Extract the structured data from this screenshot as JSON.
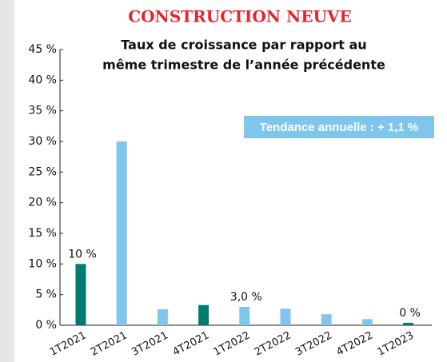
{
  "chart_data": {
    "type": "bar",
    "title": "CONSTRUCTION NEUVE",
    "subtitle": [
      "Taux de croissance par rapport au",
      "même trimestre de l’année précédente"
    ],
    "annotation": "Tendance annuelle : + 1,1 %",
    "categories": [
      "1T2021",
      "2T2021",
      "3T2021",
      "4T2021",
      "1T2022",
      "2T2022",
      "3T2022",
      "4T2022",
      "1T2023"
    ],
    "values": [
      10,
      30,
      2.6,
      3.3,
      3.0,
      2.7,
      1.8,
      1.0,
      0.4
    ],
    "value_labels": [
      "10 %",
      null,
      null,
      null,
      "3,0 %",
      null,
      null,
      null,
      "0 %"
    ],
    "colors": [
      "#007b6f",
      "#80c6ec",
      "#80c6ec",
      "#007b6f",
      "#80c6ec",
      "#80c6ec",
      "#80c6ec",
      "#80c6ec",
      "#007b6f"
    ],
    "ylim": [
      0,
      45
    ],
    "yticks": [
      {
        "value": 0,
        "label": "0 %"
      },
      {
        "value": 5,
        "label": "5 %"
      },
      {
        "value": 10,
        "label": "10 %"
      },
      {
        "value": 15,
        "label": "15 %"
      },
      {
        "value": 20,
        "label": "20 %"
      },
      {
        "value": 25,
        "label": "25 %"
      },
      {
        "value": 30,
        "label": "30 %"
      },
      {
        "value": 35,
        "label": "35 %"
      },
      {
        "value": 40,
        "label": "40 %"
      },
      {
        "value": 45,
        "label": "45 %"
      }
    ],
    "grid": false
  }
}
